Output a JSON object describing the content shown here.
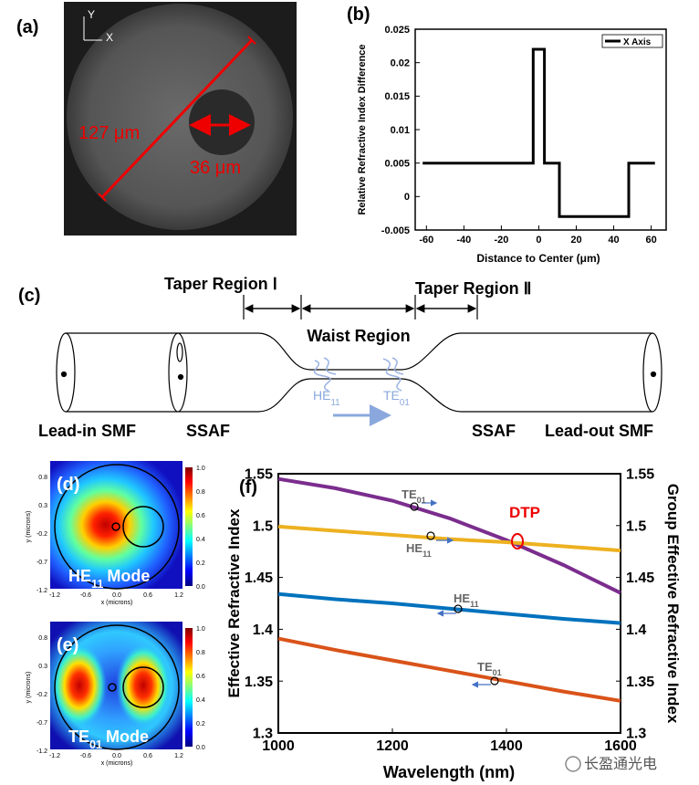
{
  "panel_labels": [
    "(a)",
    "(b)",
    "(c)",
    "(d)",
    "(e)",
    "(f)"
  ],
  "fiber_image": {
    "axis_y": "Y",
    "axis_x": "X",
    "outer_diameter": "127 μm",
    "core_diameter": "36 μm"
  },
  "schematic": {
    "taper_1": "Taper Region Ⅰ",
    "taper_2": "Taper Region Ⅱ",
    "waist": "Waist Region",
    "mode_1": {
      "base": "HE",
      "sub": "11"
    },
    "mode_2": {
      "base": "TE",
      "sub": "01"
    },
    "labels": [
      "Lead-in SMF",
      "SSAF",
      "SSAF",
      "Lead-out SMF"
    ]
  },
  "mode_maps": {
    "maps": [
      {
        "base": "HE",
        "sub": "11",
        "suffix": "Mode"
      },
      {
        "base": "TE",
        "sub": "01",
        "suffix": "Mode"
      }
    ],
    "xticks": [
      "-1.2",
      "-0.6",
      "0.0",
      "0.6",
      "1.2"
    ],
    "yticks": [
      "0.8",
      "0.3",
      "-0.2",
      "-0.7",
      "-1.2"
    ],
    "xlabel": "x (microns)",
    "ylabel": "y (microns)",
    "colorbar_ticks": [
      "1.0",
      "0.8",
      "0.6",
      "0.4",
      "0.2",
      "0.0"
    ]
  },
  "chart_data": [
    {
      "type": "line",
      "xlabel": "Distance to Center (μm)",
      "ylabel": "Relative Refractive Index Difference",
      "x": [
        -62,
        -3,
        -3,
        3,
        3,
        11,
        11,
        48,
        48,
        62
      ],
      "series": [
        {
          "name": "X Axis",
          "color": "#000000",
          "values": [
            0.005,
            0.005,
            0.022,
            0.022,
            0.005,
            0.005,
            -0.003,
            -0.003,
            0.005,
            0.005
          ]
        }
      ],
      "xlim": [
        -66,
        68
      ],
      "xticks": [
        -60,
        -40,
        -20,
        0,
        20,
        40,
        60
      ],
      "ylim": [
        -0.005,
        0.025
      ],
      "yticks": [
        -0.005,
        0,
        0.005,
        0.01,
        0.015,
        0.02,
        0.025
      ],
      "legend": "upper right"
    },
    {
      "type": "line",
      "xlabel": "Wavelength (nm)",
      "ylabel": "Effective Refractive Index",
      "y2label": "Group Effective Refractive Index",
      "x": [
        1000,
        1100,
        1200,
        1300,
        1400,
        1500,
        1600
      ],
      "series": [
        {
          "color": "#7b2d8e",
          "axis": "y2",
          "values": [
            1.545,
            1.536,
            1.524,
            1.507,
            1.486,
            1.462,
            1.435
          ]
        },
        {
          "color": "#edb120",
          "axis": "y2",
          "values": [
            1.499,
            1.495,
            1.491,
            1.487,
            1.484,
            1.48,
            1.476
          ]
        },
        {
          "color": "#0072bd",
          "values": [
            1.434,
            1.429,
            1.425,
            1.42,
            1.415,
            1.41,
            1.406
          ]
        },
        {
          "color": "#d95319",
          "values": [
            1.391,
            1.38,
            1.37,
            1.36,
            1.35,
            1.34,
            1.331
          ]
        }
      ],
      "xlim": [
        1000,
        1600
      ],
      "xticks": [
        1000,
        1200,
        1400,
        1600
      ],
      "ylim": [
        1.3,
        1.55
      ],
      "yticks": [
        1.3,
        1.35,
        1.4,
        1.45,
        1.5,
        1.55
      ],
      "y2lim": [
        1.3,
        1.55
      ],
      "y2ticks": [
        1.3,
        1.35,
        1.4,
        1.45,
        1.5,
        1.55
      ],
      "annotations": [
        {
          "base": "TE",
          "sub": "01"
        },
        {
          "base": "HE",
          "sub": "11"
        },
        {
          "base": "HE",
          "sub": "11"
        },
        {
          "base": "TE",
          "sub": "01"
        },
        {
          "text": "DTP"
        }
      ]
    }
  ],
  "watermark": "长盈通光电"
}
